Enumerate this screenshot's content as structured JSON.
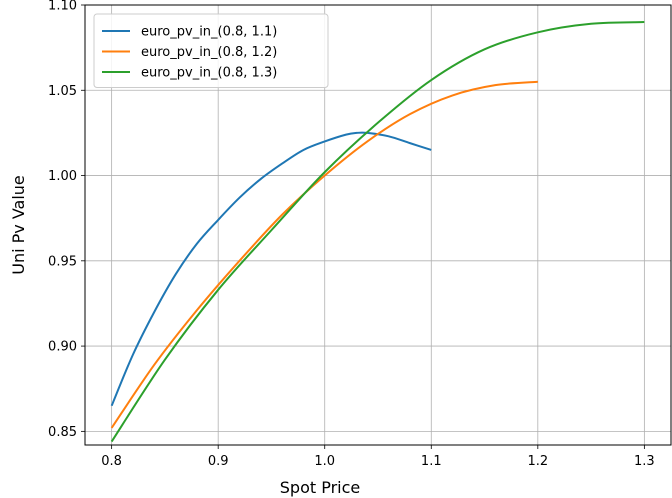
{
  "chart_data": {
    "type": "line",
    "title": "",
    "xlabel": "Spot Price",
    "ylabel": "Uni Pv Value",
    "xlim": [
      0.775,
      1.325
    ],
    "ylim": [
      0.842,
      1.1
    ],
    "xticks": [
      "0.8",
      "0.9",
      "1.0",
      "1.1",
      "1.2",
      "1.3"
    ],
    "yticks": [
      "0.85",
      "0.90",
      "0.95",
      "1.00",
      "1.05",
      "1.10"
    ],
    "grid": true,
    "legend_position": "top-left",
    "series": [
      {
        "name": "euro_pv_in_(0.8, 1.1)",
        "color": "#1f77b4",
        "x": [
          0.8,
          0.82,
          0.84,
          0.86,
          0.88,
          0.9,
          0.92,
          0.94,
          0.96,
          0.98,
          1.0,
          1.02,
          1.03,
          1.04,
          1.06,
          1.08,
          1.1
        ],
        "y": [
          0.865,
          0.895,
          0.92,
          0.942,
          0.96,
          0.974,
          0.987,
          0.998,
          1.007,
          1.015,
          1.02,
          1.024,
          1.025,
          1.025,
          1.023,
          1.019,
          1.015
        ]
      },
      {
        "name": "euro_pv_in_(0.8, 1.2)",
        "color": "#ff7f0e",
        "x": [
          0.8,
          0.84,
          0.88,
          0.92,
          0.96,
          1.0,
          1.04,
          1.08,
          1.12,
          1.16,
          1.2
        ],
        "y": [
          0.852,
          0.889,
          0.921,
          0.95,
          0.977,
          1.0,
          1.02,
          1.036,
          1.047,
          1.053,
          1.055
        ]
      },
      {
        "name": "euro_pv_in_(0.8, 1.3)",
        "color": "#2ca02c",
        "x": [
          0.8,
          0.85,
          0.9,
          0.95,
          1.0,
          1.05,
          1.1,
          1.15,
          1.2,
          1.25,
          1.3
        ],
        "y": [
          0.844,
          0.892,
          0.933,
          0.968,
          1.002,
          1.031,
          1.056,
          1.074,
          1.084,
          1.089,
          1.09
        ]
      }
    ]
  }
}
